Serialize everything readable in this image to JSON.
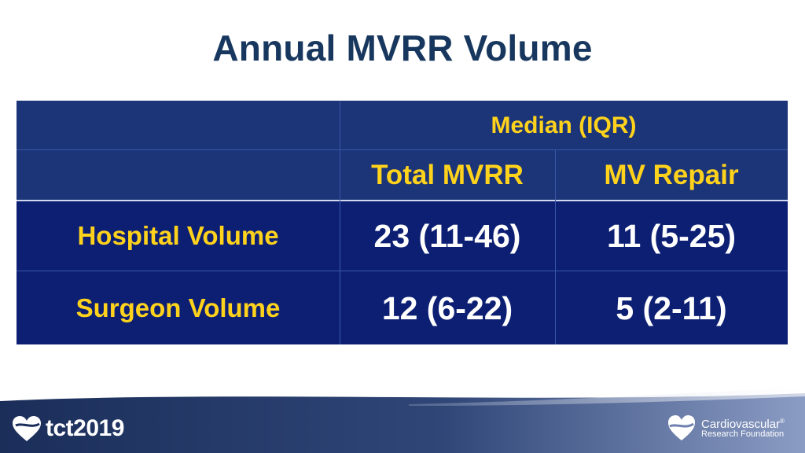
{
  "title": "Annual MVRR Volume",
  "table": {
    "group_header": "Median (IQR)",
    "columns": [
      "Total MVRR",
      "MV Repair"
    ],
    "rows": [
      {
        "label": "Hospital Volume",
        "values": [
          "23 (11-46)",
          "11 (5-25)"
        ]
      },
      {
        "label": "Surgeon Volume",
        "values": [
          "12 (6-22)",
          "5 (2-11)"
        ]
      }
    ]
  },
  "footer": {
    "brand": "tct2019",
    "partner_line1": "Cardiovascular",
    "partner_mark": "®",
    "partner_line2": "Research Foundation"
  },
  "colors": {
    "title": "#17375e",
    "table_body": "#0d1f73",
    "table_header": "#1c3578",
    "label_text": "#ffd21c",
    "value_text": "#ffffff"
  },
  "icons": [
    "heart-logo-icon",
    "crf-heart-icon"
  ]
}
